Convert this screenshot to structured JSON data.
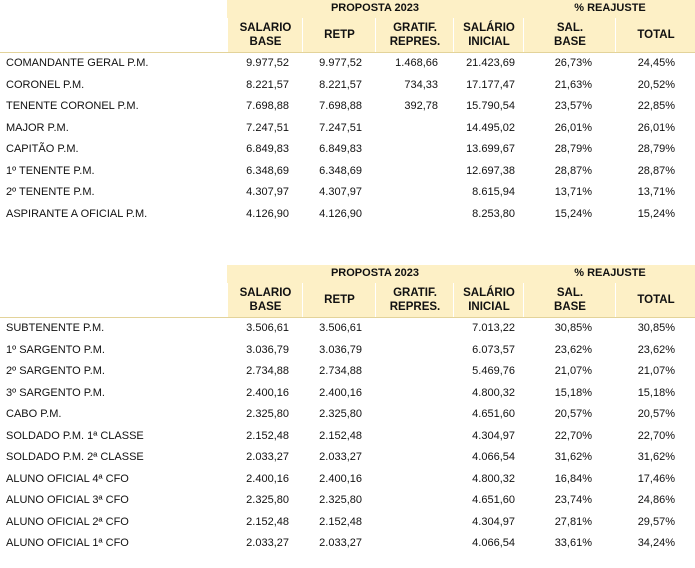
{
  "table1": {
    "proposta_label": "PROPOSTA 2023",
    "reajuste_label": "% REAJUSTE",
    "headers": {
      "salario_base": [
        "SALARIO",
        "BASE"
      ],
      "retp": "RETP",
      "gratif": [
        "GRATIF.",
        "REPRES."
      ],
      "salario_inicial": [
        "SALÁRIO",
        "INICIAL"
      ],
      "sal_base": [
        "SAL.",
        "BASE"
      ],
      "total": "TOTAL"
    },
    "rows": [
      {
        "name": "COMANDANTE GERAL P.M.",
        "base": "9.977,52",
        "retp": "9.977,52",
        "gratif": "1.468,66",
        "inicial": "21.423,69",
        "sal_base": "26,73%",
        "total": "24,45%"
      },
      {
        "name": "CORONEL P.M.",
        "base": "8.221,57",
        "retp": "8.221,57",
        "gratif": "734,33",
        "inicial": "17.177,47",
        "sal_base": "21,63%",
        "total": "20,52%"
      },
      {
        "name": "TENENTE CORONEL P.M.",
        "base": "7.698,88",
        "retp": "7.698,88",
        "gratif": "392,78",
        "inicial": "15.790,54",
        "sal_base": "23,57%",
        "total": "22,85%"
      },
      {
        "name": "MAJOR P.M.",
        "base": "7.247,51",
        "retp": "7.247,51",
        "gratif": "",
        "inicial": "14.495,02",
        "sal_base": "26,01%",
        "total": "26,01%"
      },
      {
        "name": "CAPITÃO P.M.",
        "base": "6.849,83",
        "retp": "6.849,83",
        "gratif": "",
        "inicial": "13.699,67",
        "sal_base": "28,79%",
        "total": "28,79%"
      },
      {
        "name": "1º TENENTE P.M.",
        "base": "6.348,69",
        "retp": "6.348,69",
        "gratif": "",
        "inicial": "12.697,38",
        "sal_base": "28,87%",
        "total": "28,87%"
      },
      {
        "name": "2º TENENTE P.M.",
        "base": "4.307,97",
        "retp": "4.307,97",
        "gratif": "",
        "inicial": "8.615,94",
        "sal_base": "13,71%",
        "total": "13,71%"
      },
      {
        "name": "ASPIRANTE A OFICIAL P.M.",
        "base": "4.126,90",
        "retp": "4.126,90",
        "gratif": "",
        "inicial": "8.253,80",
        "sal_base": "15,24%",
        "total": "15,24%"
      }
    ]
  },
  "table2": {
    "proposta_label": "PROPOSTA 2023",
    "reajuste_label": "% REAJUSTE",
    "headers": {
      "salario_base": [
        "SALARIO",
        "BASE"
      ],
      "retp": "RETP",
      "gratif": [
        "GRATIF.",
        "REPRES."
      ],
      "salario_inicial": [
        "SALÁRIO",
        "INICIAL"
      ],
      "sal_base": [
        "SAL.",
        "BASE"
      ],
      "total": "TOTAL"
    },
    "rows": [
      {
        "name": "SUBTENENTE P.M.",
        "base": "3.506,61",
        "retp": "3.506,61",
        "gratif": "",
        "inicial": "7.013,22",
        "sal_base": "30,85%",
        "total": "30,85%"
      },
      {
        "name": "1º SARGENTO P.M.",
        "base": "3.036,79",
        "retp": "3.036,79",
        "gratif": "",
        "inicial": "6.073,57",
        "sal_base": "23,62%",
        "total": "23,62%"
      },
      {
        "name": "2º SARGENTO P.M.",
        "base": "2.734,88",
        "retp": "2.734,88",
        "gratif": "",
        "inicial": "5.469,76",
        "sal_base": "21,07%",
        "total": "21,07%"
      },
      {
        "name": "3º SARGENTO P.M.",
        "base": "2.400,16",
        "retp": "2.400,16",
        "gratif": "",
        "inicial": "4.800,32",
        "sal_base": "15,18%",
        "total": "15,18%"
      },
      {
        "name": "CABO P.M.",
        "base": "2.325,80",
        "retp": "2.325,80",
        "gratif": "",
        "inicial": "4.651,60",
        "sal_base": "20,57%",
        "total": "20,57%"
      },
      {
        "name": "SOLDADO P.M. 1ª CLASSE",
        "base": "2.152,48",
        "retp": "2.152,48",
        "gratif": "",
        "inicial": "4.304,97",
        "sal_base": "22,70%",
        "total": "22,70%"
      },
      {
        "name": "SOLDADO P.M. 2ª CLASSE",
        "base": "2.033,27",
        "retp": "2.033,27",
        "gratif": "",
        "inicial": "4.066,54",
        "sal_base": "31,62%",
        "total": "31,62%"
      },
      {
        "name": "ALUNO OFICIAL 4ª CFO",
        "base": "2.400,16",
        "retp": "2.400,16",
        "gratif": "",
        "inicial": "4.800,32",
        "sal_base": "16,84%",
        "total": "17,46%"
      },
      {
        "name": "ALUNO OFICIAL 3ª CFO",
        "base": "2.325,80",
        "retp": "2.325,80",
        "gratif": "",
        "inicial": "4.651,60",
        "sal_base": "23,74%",
        "total": "24,86%"
      },
      {
        "name": "ALUNO OFICIAL 2ª CFO",
        "base": "2.152,48",
        "retp": "2.152,48",
        "gratif": "",
        "inicial": "4.304,97",
        "sal_base": "27,81%",
        "total": "29,57%"
      },
      {
        "name": "ALUNO OFICIAL 1ª CFO",
        "base": "2.033,27",
        "retp": "2.033,27",
        "gratif": "",
        "inicial": "4.066,54",
        "sal_base": "33,61%",
        "total": "34,24%"
      }
    ]
  }
}
